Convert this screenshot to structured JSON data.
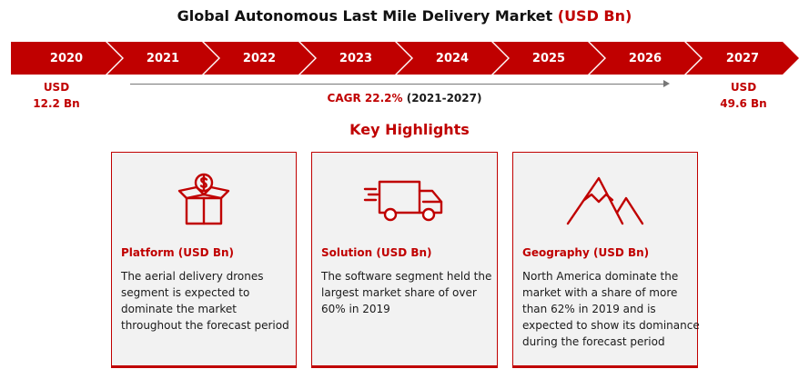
{
  "title": {
    "main": "Global Autonomous Last Mile Delivery Market",
    "unit": "(USD Bn)"
  },
  "timeline": {
    "years": [
      "2020",
      "2021",
      "2022",
      "2023",
      "2024",
      "2025",
      "2026",
      "2027"
    ],
    "start": {
      "currency": "USD",
      "value": "12.2 Bn"
    },
    "end": {
      "currency": "USD",
      "value": "49.6 Bn"
    },
    "cagr_label": "CAGR 22.2%",
    "cagr_period": "(2021-2027)"
  },
  "highlights": {
    "heading": "Key Highlights",
    "cards": [
      {
        "icon": "money-box-icon",
        "title": "Platform (USD Bn)",
        "text": "The aerial delivery drones segment is expected to dominate the market throughout the forecast period"
      },
      {
        "icon": "delivery-truck-icon",
        "title": "Solution (USD Bn)",
        "text": "The software segment held the largest market share of over 60% in 2019"
      },
      {
        "icon": "mountain-icon",
        "title": "Geography (USD Bn)",
        "text": "North America dominate the market with a share of more than 62% in 2019 and is expected to show its dominance during the forecast period"
      }
    ]
  },
  "colors": {
    "accent": "#c00000",
    "card_bg": "#f2f2f2"
  }
}
